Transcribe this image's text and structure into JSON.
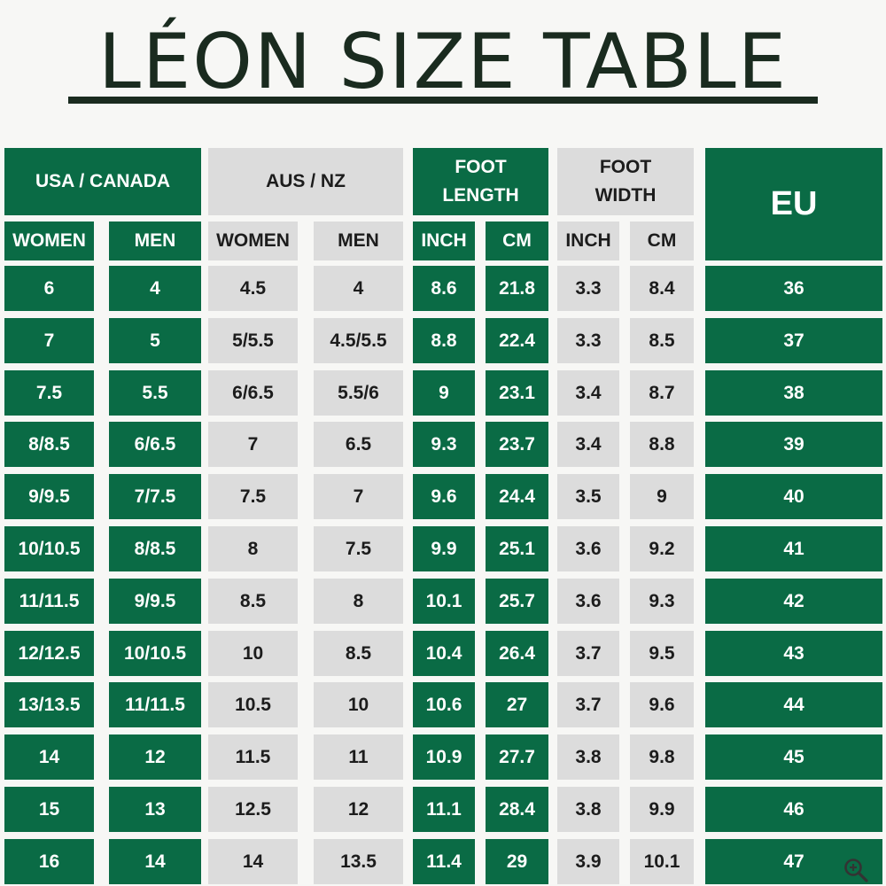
{
  "title": "LÉON SIZE TABLE",
  "groups": {
    "usa_canada": "USA / CANADA",
    "aus_nz": "AUS / NZ",
    "foot_length": "FOOT\nLENGTH",
    "foot_width": "FOOT\nWIDTH",
    "eu": "EU"
  },
  "subheaders": [
    "WOMEN",
    "MEN",
    "WOMEN",
    "MEN",
    "INCH",
    "CM",
    "INCH",
    "CM"
  ],
  "rows": [
    [
      "6",
      "4",
      "4.5",
      "4",
      "8.6",
      "21.8",
      "3.3",
      "8.4",
      "36"
    ],
    [
      "7",
      "5",
      "5/5.5",
      "4.5/5.5",
      "8.8",
      "22.4",
      "3.3",
      "8.5",
      "37"
    ],
    [
      "7.5",
      "5.5",
      "6/6.5",
      "5.5/6",
      "9",
      "23.1",
      "3.4",
      "8.7",
      "38"
    ],
    [
      "8/8.5",
      "6/6.5",
      "7",
      "6.5",
      "9.3",
      "23.7",
      "3.4",
      "8.8",
      "39"
    ],
    [
      "9/9.5",
      "7/7.5",
      "7.5",
      "7",
      "9.6",
      "24.4",
      "3.5",
      "9",
      "40"
    ],
    [
      "10/10.5",
      "8/8.5",
      "8",
      "7.5",
      "9.9",
      "25.1",
      "3.6",
      "9.2",
      "41"
    ],
    [
      "11/11.5",
      "9/9.5",
      "8.5",
      "8",
      "10.1",
      "25.7",
      "3.6",
      "9.3",
      "42"
    ],
    [
      "12/12.5",
      "10/10.5",
      "10",
      "8.5",
      "10.4",
      "26.4",
      "3.7",
      "9.5",
      "43"
    ],
    [
      "13/13.5",
      "11/11.5",
      "10.5",
      "10",
      "10.6",
      "27",
      "3.7",
      "9.6",
      "44"
    ],
    [
      "14",
      "12",
      "11.5",
      "11",
      "10.9",
      "27.7",
      "3.8",
      "9.8",
      "45"
    ],
    [
      "15",
      "13",
      "12.5",
      "12",
      "11.1",
      "28.4",
      "3.8",
      "9.9",
      "46"
    ],
    [
      "16",
      "14",
      "14",
      "13.5",
      "11.4",
      "29",
      "3.9",
      "10.1",
      "47"
    ]
  ],
  "colors": {
    "green": "#0a6b45",
    "gray": "#dcdcdc",
    "title": "#1a2b1f"
  },
  "icons": {
    "corner": "zoom-in-icon"
  }
}
